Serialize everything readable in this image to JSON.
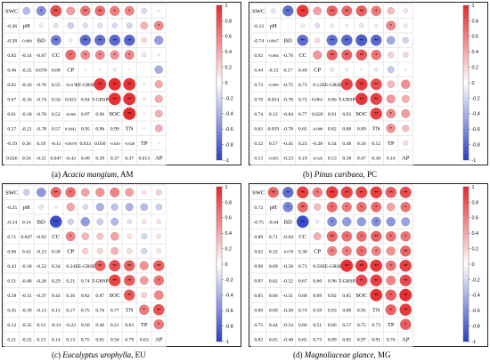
{
  "colors": {
    "pos": "#e8272a",
    "neg": "#2b3fc4",
    "grid": "#e2e2e2",
    "frame": "#222222"
  },
  "colorbar_ticks": [
    "1",
    "0.8",
    "0.6",
    "0.4",
    "0.2",
    "0",
    "-0.2",
    "-0.4",
    "-0.6",
    "-0.8",
    "-1"
  ],
  "chart_data": [
    {
      "type": "heatmap",
      "caption": {
        "prefix": "(a) ",
        "species": "Acacia mangium",
        "suffix": ", AM"
      },
      "variables": [
        "SWC",
        "pH",
        "BD",
        "CC",
        "CP",
        "EE-GRSP",
        "T-GRSP",
        "SOC",
        "TN",
        "TP",
        "AP"
      ],
      "lower_labels": [
        [],
        [
          "-0.36"
        ],
        [
          "-0.58",
          "-0.088"
        ],
        [
          "0.82",
          "-0.14",
          "-0.67"
        ],
        [
          "0.46",
          "-0.25",
          "0.076",
          "0.68"
        ],
        [
          "0.65",
          "-0.16",
          "-0.76",
          "0.55",
          "-0.017"
        ],
        [
          "0.67",
          "-0.16",
          "-0.74",
          "0.56",
          "0.023",
          "0.94"
        ],
        [
          "0.61",
          "-0.18",
          "-0.78",
          "0.52",
          "-0.065",
          "0.97",
          "0.96"
        ],
        [
          "0.57",
          "-0.21",
          "-0.78",
          "0.57",
          "0.0042",
          "0.95",
          "0.96",
          "0.99"
        ],
        [
          "-0.19",
          "0.36",
          "0.19",
          "-0.11",
          "-0.0070",
          "0.033",
          "0.050",
          "-0.020",
          "-0.020"
        ],
        [
          "0.026",
          "0.56",
          "-0.51",
          "0.047",
          "-0.42",
          "0.40",
          "0.39",
          "0.37",
          "0.37",
          "0.013"
        ]
      ],
      "upper_sig": [
        [
          "",
          "",
          "*",
          "**",
          "",
          "**",
          "**",
          "*",
          "*",
          "",
          ""
        ],
        [
          "",
          "",
          "",
          "",
          "",
          "",
          "",
          "",
          "",
          "",
          "*"
        ],
        [
          "",
          "",
          "",
          "**",
          "",
          "**",
          "**",
          "**",
          "**",
          "",
          ""
        ],
        [
          "",
          "",
          "",
          "",
          "*",
          "*",
          "*",
          "*",
          "*",
          "",
          ""
        ],
        [
          "",
          "",
          "",
          "",
          "",
          "",
          "",
          "",
          "",
          "",
          ""
        ],
        [
          "",
          "",
          "",
          "",
          "",
          "",
          "**",
          "**",
          "**",
          "",
          ""
        ],
        [
          "",
          "",
          "",
          "",
          "",
          "",
          "",
          "**",
          "**",
          "",
          ""
        ],
        [
          "",
          "",
          "",
          "",
          "",
          "",
          "",
          "",
          "**",
          "",
          ""
        ],
        [
          "",
          "",
          "",
          "",
          "",
          "",
          "",
          "",
          "",
          "",
          ""
        ],
        [
          "",
          "",
          "",
          "",
          "",
          "",
          "",
          "",
          "",
          "",
          ""
        ],
        [
          "",
          "",
          "",
          "",
          "",
          "",
          "",
          "",
          "",
          "",
          ""
        ]
      ]
    },
    {
      "type": "heatmap",
      "caption": {
        "prefix": "(b) ",
        "species": "Pinus caribaea",
        "suffix": ", PC"
      },
      "variables": [
        "SWC",
        "pH",
        "BD",
        "CC",
        "CP",
        "EE-GRSP",
        "T-GRSP",
        "SOC",
        "TN",
        "TP",
        "AP"
      ],
      "lower_labels": [
        [],
        [
          "-0.13"
        ],
        [
          "-0.74",
          "0.0067"
        ],
        [
          "0.92",
          "-0.084",
          "-0.76"
        ],
        [
          "0.44",
          "-0.15",
          "0.17",
          "0.49"
        ],
        [
          "0.73",
          "-0.089",
          "-0.75",
          "0.73",
          "0.12"
        ],
        [
          "0.70",
          "0.054",
          "-0.78",
          "0.72",
          "0.061",
          "0.86"
        ],
        [
          "0.74",
          "0.12",
          "-0.84",
          "0.77",
          "0.026",
          "0.91",
          "0.93"
        ],
        [
          "0.63",
          "0.059",
          "-0.78",
          "0.65",
          "-0.088",
          "0.82",
          "0.88",
          "0.89"
        ],
        [
          "0.32",
          "0.57",
          "-0.45",
          "0.23",
          "-0.28",
          "0.34",
          "0.48",
          "0.56",
          "0.52"
        ],
        [
          "0.13",
          "-0.095",
          "-0.23",
          "0.19",
          "-0.026",
          "0.53",
          "0.38",
          "0.47",
          "0.30",
          "0.16"
        ]
      ],
      "upper_sig": [
        [
          "",
          "",
          "**",
          "**",
          "",
          "**",
          "**",
          "**",
          "*",
          "",
          ""
        ],
        [
          "",
          "",
          "",
          "",
          "",
          "",
          "",
          "",
          "",
          "*",
          ""
        ],
        [
          "",
          "",
          "",
          "**",
          "",
          "**",
          "**",
          "**",
          "**",
          "",
          ""
        ],
        [
          "",
          "",
          "",
          "",
          "",
          "**",
          "**",
          "**",
          "*",
          "",
          ""
        ],
        [
          "",
          "",
          "",
          "",
          "",
          "",
          "",
          "",
          "",
          "",
          ""
        ],
        [
          "",
          "",
          "",
          "",
          "",
          "",
          "**",
          "**",
          "**",
          "",
          ""
        ],
        [
          "",
          "",
          "",
          "",
          "",
          "",
          "",
          "**",
          "**",
          "",
          ""
        ],
        [
          "",
          "",
          "",
          "",
          "",
          "",
          "",
          "",
          "**",
          "*",
          ""
        ],
        [
          "",
          "",
          "",
          "",
          "",
          "",
          "",
          "",
          "",
          "*",
          ""
        ],
        [
          "",
          "",
          "",
          "",
          "",
          "",
          "",
          "",
          "",
          "",
          ""
        ],
        [
          "",
          "",
          "",
          "",
          "",
          "",
          "",
          "",
          "",
          "",
          ""
        ]
      ]
    },
    {
      "type": "heatmap",
      "caption": {
        "prefix": "(c) ",
        "species": "Eucalyptus urophylla",
        "suffix": ", EU"
      },
      "variables": [
        "SWC",
        "pH",
        "BD",
        "CC",
        "CP",
        "EE-GRSP",
        "T-GRSP",
        "SOC",
        "TN",
        "TP",
        "AP"
      ],
      "lower_labels": [
        [],
        [
          "-0.25"
        ],
        [
          "-0.54",
          "0.14"
        ],
        [
          "0.71",
          "0.047",
          "-0.92"
        ],
        [
          "0.66",
          "0.42",
          "-0.23",
          "0.58"
        ],
        [
          "0.43",
          "-0.18",
          "-0.52",
          "0.34",
          "0.24"
        ],
        [
          "0.51",
          "-0.40",
          "-0.26",
          "0.29",
          "0.21",
          "0.74"
        ],
        [
          "0.58",
          "-0.31",
          "-0.37",
          "0.44",
          "0.36",
          "0.82",
          "0.87"
        ],
        [
          "0.45",
          "-0.39",
          "-0.13",
          "0.15",
          "0.17",
          "0.75",
          "0.76",
          "0.77"
        ],
        [
          "0.12",
          "-0.35",
          "0.12",
          "-0.21",
          "-0.22",
          "0.50",
          "0.46",
          "0.21",
          "0.63"
        ],
        [
          "0.21",
          "-0.25",
          "0.13",
          "0.14",
          "0.13",
          "0.75",
          "0.65",
          "0.56",
          "0.79",
          "0.63"
        ]
      ],
      "upper_sig": [
        [
          "",
          "",
          "",
          "**",
          "*",
          "",
          "",
          "",
          "",
          "",
          ""
        ],
        [
          "",
          "",
          "",
          "",
          "",
          "",
          "",
          "",
          "",
          "",
          ""
        ],
        [
          "",
          "",
          "",
          "**",
          "",
          "",
          "",
          "",
          "",
          "",
          ""
        ],
        [
          "",
          "",
          "",
          "",
          "*",
          "",
          "",
          "",
          "",
          "",
          ""
        ],
        [
          "",
          "",
          "",
          "",
          "",
          "",
          "",
          "",
          "",
          "",
          ""
        ],
        [
          "",
          "",
          "",
          "",
          "",
          "",
          "**",
          "**",
          "**",
          "",
          "**"
        ],
        [
          "",
          "",
          "",
          "",
          "",
          "",
          "",
          "**",
          "**",
          "",
          "*"
        ],
        [
          "",
          "",
          "",
          "",
          "",
          "",
          "",
          "",
          "**",
          "",
          ""
        ],
        [
          "",
          "",
          "",
          "",
          "",
          "",
          "",
          "",
          "",
          "*",
          "**"
        ],
        [
          "",
          "",
          "",
          "",
          "",
          "",
          "",
          "",
          "",
          "",
          "*"
        ],
        [
          "",
          "",
          "",
          "",
          "",
          "",
          "",
          "",
          "",
          "",
          ""
        ]
      ]
    },
    {
      "type": "heatmap",
      "caption": {
        "prefix": "(d) ",
        "species": "Magnoliaceae glance",
        "suffix": ", MG"
      },
      "variables": [
        "SWC",
        "pH",
        "BD",
        "CC",
        "CP",
        "EE-GRSP",
        "T-GRSP",
        "SOC",
        "TN",
        "TP",
        "AP"
      ],
      "lower_labels": [
        [],
        [
          "0.72"
        ],
        [
          "-0.75",
          "-0.64"
        ],
        [
          "0.89",
          "0.71",
          "-0.94"
        ],
        [
          "0.62",
          "0.32",
          "-0.078",
          "0.38"
        ],
        [
          "0.90",
          "0.69",
          "-0.58",
          "0.71",
          "0.59"
        ],
        [
          "0.87",
          "0.62",
          "-0.52",
          "0.67",
          "0.60",
          "0.96"
        ],
        [
          "0.85",
          "0.66",
          "-0.51",
          "0.68",
          "0.69",
          "0.92",
          "0.85"
        ],
        [
          "0.89",
          "0.69",
          "-0.58",
          "0.74",
          "0.59",
          "0.93",
          "0.88",
          "0.95"
        ],
        [
          "0.75",
          "0.44",
          "-0.54",
          "0.66",
          "0.51",
          "0.66",
          "0.57",
          "0.75",
          "0.73"
        ],
        [
          "0.82",
          "0.65",
          "-0.48",
          "0.65",
          "0.73",
          "0.89",
          "0.85",
          "0.97",
          "0.91",
          "0.76"
        ]
      ],
      "upper_sig": [
        [
          "",
          "**",
          "**",
          "**",
          "*",
          "**",
          "**",
          "**",
          "**",
          "**",
          "**"
        ],
        [
          "",
          "",
          "*",
          "**",
          "",
          "*",
          "*",
          "*",
          "*",
          "",
          "*"
        ],
        [
          "",
          "",
          "",
          "**",
          "",
          "*",
          "",
          "",
          "*",
          "",
          ""
        ],
        [
          "",
          "",
          "",
          "",
          "",
          "**",
          "*",
          "*",
          "**",
          "*",
          "*"
        ],
        [
          "",
          "",
          "",
          "",
          "",
          "*",
          "*",
          "*",
          "*",
          "",
          "**"
        ],
        [
          "",
          "",
          "",
          "",
          "",
          "",
          "**",
          "**",
          "**",
          "*",
          "**"
        ],
        [
          "",
          "",
          "",
          "",
          "",
          "",
          "",
          "**",
          "**",
          "",
          "**"
        ],
        [
          "",
          "",
          "",
          "",
          "",
          "",
          "",
          "",
          "**",
          "*",
          "**"
        ],
        [
          "",
          "",
          "",
          "",
          "",
          "",
          "",
          "",
          "",
          "*",
          "**"
        ],
        [
          "",
          "",
          "",
          "",
          "",
          "",
          "",
          "",
          "",
          "",
          "*"
        ],
        [
          "",
          "",
          "",
          "",
          "",
          "",
          "",
          "",
          "",
          "",
          ""
        ]
      ]
    }
  ]
}
